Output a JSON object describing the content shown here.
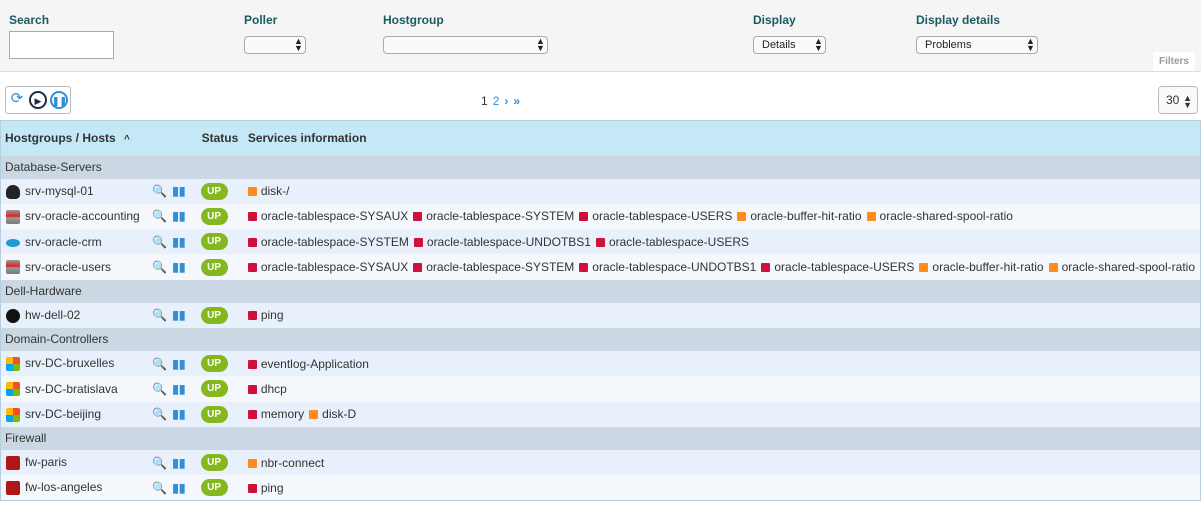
{
  "filters": {
    "search_label": "Search",
    "search_value": "",
    "poller_label": "Poller",
    "poller_value": "",
    "hostgroup_label": "Hostgroup",
    "hostgroup_value": "",
    "display_label": "Display",
    "display_value": "Details",
    "details_label": "Display details",
    "details_value": "Problems",
    "filters_tab": "Filters"
  },
  "toolbar": {
    "refresh_icon": "refresh-icon",
    "play_icon": "play-icon",
    "pause_icon": "pause-icon",
    "pages": [
      "1",
      "2"
    ],
    "next": "›",
    "last": "»",
    "per_page": "30"
  },
  "table": {
    "headers": {
      "hosts": "Hostgroups / Hosts",
      "sort": "^",
      "status": "Status",
      "services": "Services information"
    },
    "colors": {
      "critical": "#d0103a",
      "warning": "#ff8c1a",
      "up": "#84b81e"
    },
    "groups": [
      {
        "name": "Database-Servers",
        "hosts": [
          {
            "name": "srv-mysql-01",
            "icon": "linux-icon",
            "status": "UP",
            "services": [
              {
                "n": "disk-/",
                "s": "warning"
              }
            ]
          },
          {
            "name": "srv-oracle-accounting",
            "icon": "database-icon",
            "status": "UP",
            "services": [
              {
                "n": "oracle-tablespace-SYSAUX",
                "s": "critical"
              },
              {
                "n": "oracle-tablespace-SYSTEM",
                "s": "critical"
              },
              {
                "n": "oracle-tablespace-USERS",
                "s": "critical"
              },
              {
                "n": "oracle-buffer-hit-ratio",
                "s": "warning"
              },
              {
                "n": "oracle-shared-spool-ratio",
                "s": "warning"
              }
            ]
          },
          {
            "name": "srv-oracle-crm",
            "icon": "salesforce-icon",
            "status": "UP",
            "services": [
              {
                "n": "oracle-tablespace-SYSTEM",
                "s": "critical"
              },
              {
                "n": "oracle-tablespace-UNDOTBS1",
                "s": "critical"
              },
              {
                "n": "oracle-tablespace-USERS",
                "s": "critical"
              }
            ]
          },
          {
            "name": "srv-oracle-users",
            "icon": "database-icon",
            "status": "UP",
            "services": [
              {
                "n": "oracle-tablespace-SYSAUX",
                "s": "critical"
              },
              {
                "n": "oracle-tablespace-SYSTEM",
                "s": "critical"
              },
              {
                "n": "oracle-tablespace-UNDOTBS1",
                "s": "critical"
              },
              {
                "n": "oracle-tablespace-USERS",
                "s": "critical"
              },
              {
                "n": "oracle-buffer-hit-ratio",
                "s": "warning"
              },
              {
                "n": "oracle-shared-spool-ratio",
                "s": "warning"
              }
            ]
          }
        ]
      },
      {
        "name": "Dell-Hardware",
        "hosts": [
          {
            "name": "hw-dell-02",
            "icon": "dell-icon",
            "status": "UP",
            "services": [
              {
                "n": "ping",
                "s": "critical"
              }
            ]
          }
        ]
      },
      {
        "name": "Domain-Controllers",
        "hosts": [
          {
            "name": "srv-DC-bruxelles",
            "icon": "windows-icon",
            "status": "UP",
            "services": [
              {
                "n": "eventlog-Application",
                "s": "critical"
              }
            ]
          },
          {
            "name": "srv-DC-bratislava",
            "icon": "windows-icon",
            "status": "UP",
            "services": [
              {
                "n": "dhcp",
                "s": "critical"
              }
            ]
          },
          {
            "name": "srv-DC-beijing",
            "icon": "windows-icon",
            "status": "UP",
            "services": [
              {
                "n": "memory",
                "s": "critical"
              },
              {
                "n": "disk-D",
                "s": "warning"
              }
            ]
          }
        ]
      },
      {
        "name": "Firewall",
        "hosts": [
          {
            "name": "fw-paris",
            "icon": "firewall-icon",
            "status": "UP",
            "services": [
              {
                "n": "nbr-connect",
                "s": "warning"
              }
            ]
          },
          {
            "name": "fw-los-angeles",
            "icon": "firewall-icon",
            "status": "UP",
            "services": [
              {
                "n": "ping",
                "s": "critical"
              }
            ]
          }
        ]
      }
    ]
  }
}
